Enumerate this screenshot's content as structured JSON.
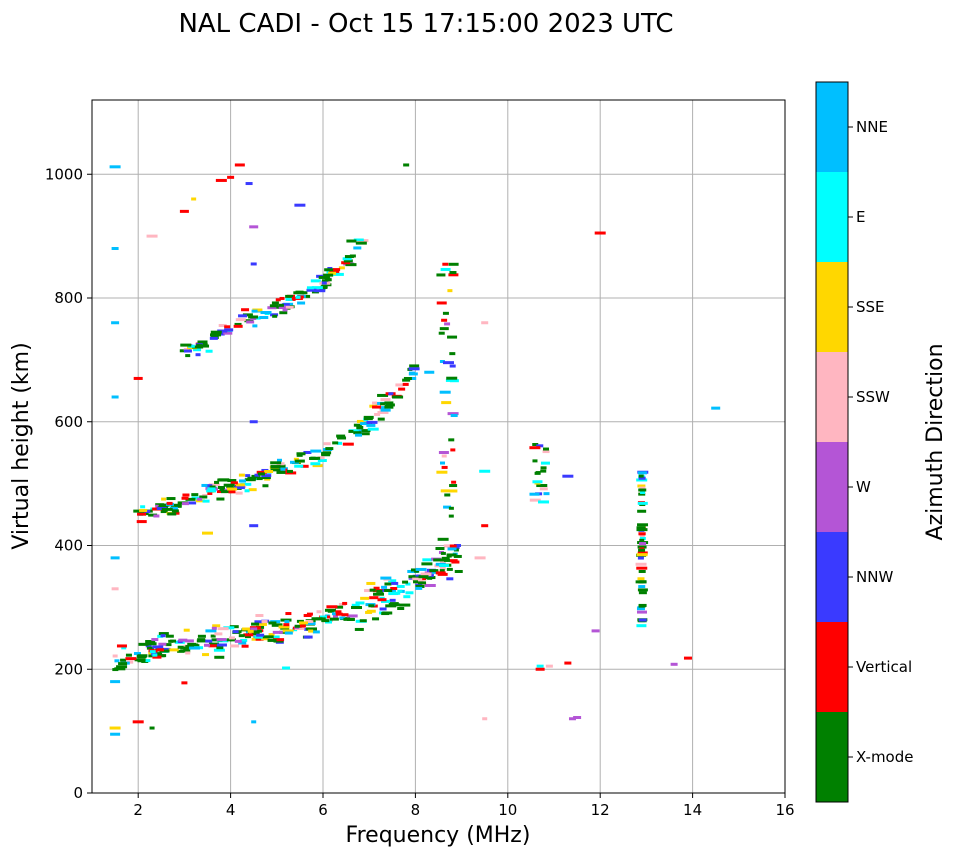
{
  "chart_data": {
    "type": "scatter",
    "title": "NAL CADI - Oct 15 17:15:00 2023 UTC",
    "xlabel": "Frequency (MHz)",
    "ylabel": "Virtual height (km)",
    "xlim": [
      1,
      16
    ],
    "ylim": [
      0,
      1120
    ],
    "xticks": [
      2,
      4,
      6,
      8,
      10,
      12,
      14,
      16
    ],
    "yticks": [
      0,
      200,
      400,
      600,
      800,
      1000
    ],
    "grid": true,
    "colorbar": {
      "label": "Azimuth Direction",
      "categories": [
        {
          "name": "X-mode",
          "color": "#008000"
        },
        {
          "name": "Vertical",
          "color": "#ff0000"
        },
        {
          "name": "NNW",
          "color": "#3a3aff"
        },
        {
          "name": "W",
          "color": "#b455d6"
        },
        {
          "name": "SSW",
          "color": "#ffb6c1"
        },
        {
          "name": "SSE",
          "color": "#ffd700"
        },
        {
          "name": "E",
          "color": "#00ffff"
        },
        {
          "name": "NNE",
          "color": "#00bfff"
        }
      ]
    },
    "traces": [
      {
        "name": "F-layer first-hop trace",
        "points": [
          [
            1.5,
            212
          ],
          [
            2.0,
            222
          ],
          [
            2.5,
            232
          ],
          [
            3.0,
            240
          ],
          [
            3.5,
            245
          ],
          [
            4.0,
            250
          ],
          [
            4.5,
            258
          ],
          [
            5.0,
            265
          ],
          [
            5.5,
            272
          ],
          [
            6.0,
            282
          ],
          [
            6.5,
            292
          ],
          [
            7.0,
            305
          ],
          [
            7.5,
            320
          ],
          [
            8.0,
            338
          ],
          [
            8.5,
            360
          ],
          [
            9.0,
            385
          ]
        ]
      },
      {
        "name": "second-hop trace",
        "points": [
          [
            2.0,
            450
          ],
          [
            2.5,
            458
          ],
          [
            3.0,
            470
          ],
          [
            3.5,
            485
          ],
          [
            4.0,
            495
          ],
          [
            4.5,
            505
          ],
          [
            5.0,
            520
          ],
          [
            5.5,
            535
          ],
          [
            6.0,
            550
          ],
          [
            6.5,
            570
          ],
          [
            7.0,
            600
          ],
          [
            7.5,
            635
          ],
          [
            7.8,
            665
          ],
          [
            8.0,
            700
          ]
        ]
      },
      {
        "name": "third-hop trace",
        "points": [
          [
            3.0,
            710
          ],
          [
            3.5,
            730
          ],
          [
            4.0,
            755
          ],
          [
            4.5,
            770
          ],
          [
            5.0,
            785
          ],
          [
            5.5,
            800
          ],
          [
            6.0,
            825
          ],
          [
            6.5,
            860
          ],
          [
            7.0,
            905
          ]
        ]
      }
    ],
    "clusters": [
      {
        "name": "8.7 MHz column",
        "x": 8.7,
        "y_range": [
          420,
          860
        ]
      },
      {
        "name": "10.7 MHz cluster",
        "x": 10.7,
        "y_range": [
          470,
          565
        ]
      },
      {
        "name": "12.9 MHz column",
        "x": 12.9,
        "y_range": [
          270,
          520
        ]
      }
    ]
  }
}
